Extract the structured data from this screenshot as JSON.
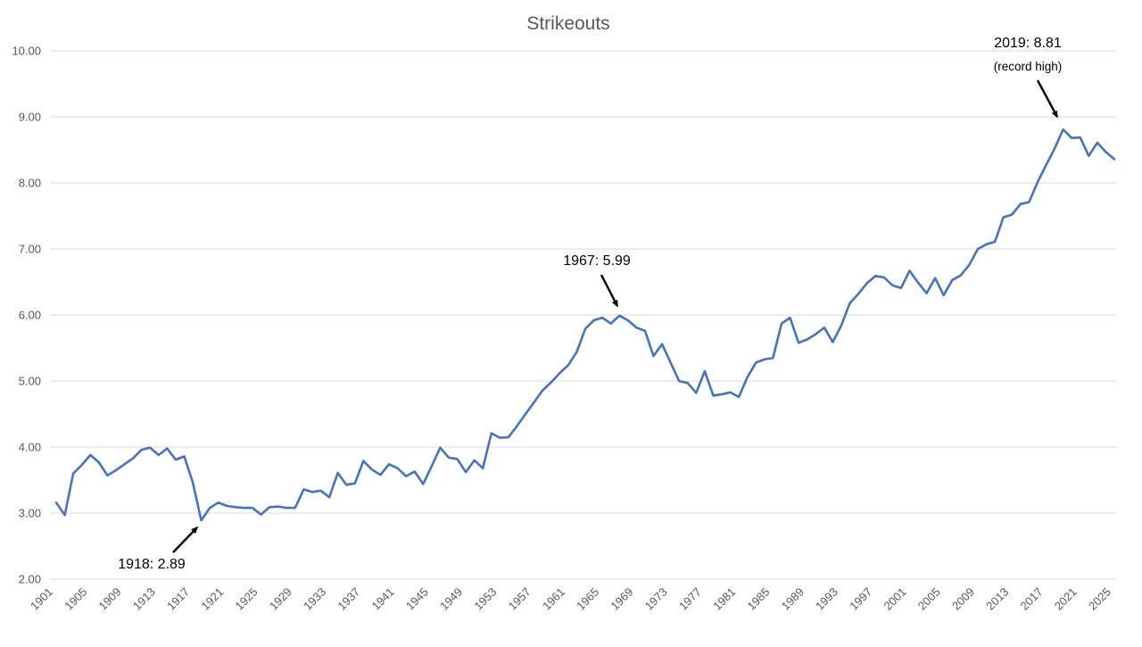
{
  "chart_data": {
    "type": "line",
    "title": "Strikeouts",
    "start_year": 1901,
    "end_year": 2025,
    "values": [
      3.16,
      2.97,
      3.6,
      3.73,
      3.88,
      3.77,
      3.57,
      3.65,
      3.74,
      3.83,
      3.96,
      3.99,
      3.88,
      3.98,
      3.81,
      3.86,
      3.47,
      2.89,
      3.08,
      3.16,
      3.11,
      3.09,
      3.08,
      3.08,
      2.98,
      3.09,
      3.1,
      3.08,
      3.08,
      3.36,
      3.32,
      3.34,
      3.24,
      3.61,
      3.43,
      3.45,
      3.79,
      3.66,
      3.58,
      3.74,
      3.68,
      3.56,
      3.63,
      3.44,
      3.71,
      3.99,
      3.84,
      3.82,
      3.62,
      3.8,
      3.68,
      4.21,
      4.14,
      4.15,
      4.32,
      4.5,
      4.68,
      4.86,
      4.98,
      5.12,
      5.24,
      5.44,
      5.79,
      5.92,
      5.96,
      5.87,
      5.99,
      5.92,
      5.81,
      5.76,
      5.38,
      5.56,
      5.28,
      5.0,
      4.97,
      4.82,
      5.15,
      4.78,
      4.8,
      4.83,
      4.76,
      5.06,
      5.28,
      5.33,
      5.35,
      5.87,
      5.96,
      5.58,
      5.63,
      5.71,
      5.81,
      5.59,
      5.84,
      6.18,
      6.32,
      6.48,
      6.59,
      6.57,
      6.45,
      6.41,
      6.67,
      6.49,
      6.33,
      6.56,
      6.3,
      6.53,
      6.6,
      6.76,
      7.0,
      7.07,
      7.11,
      7.48,
      7.52,
      7.68,
      7.71,
      8.01,
      8.27,
      8.52,
      8.81,
      8.68,
      8.69,
      8.41,
      8.61,
      8.47,
      8.36
    ],
    "ylim": [
      2,
      10
    ],
    "y_tick_labels": [
      "2.00",
      "3.00",
      "4.00",
      "5.00",
      "6.00",
      "7.00",
      "8.00",
      "9.00",
      "10.00"
    ],
    "x_tick_labels": [
      "1901",
      "1905",
      "1909",
      "1913",
      "1917",
      "1921",
      "1925",
      "1929",
      "1933",
      "1937",
      "1941",
      "1945",
      "1949",
      "1953",
      "1957",
      "1961",
      "1965",
      "1969",
      "1973",
      "1977",
      "1981",
      "1985",
      "1989",
      "1993",
      "1997",
      "2001",
      "2005",
      "2009",
      "2013",
      "2017",
      "2021",
      "2025"
    ],
    "x_tick_step": 4,
    "grid": "horizontal",
    "legend_position": "none",
    "line_color": "#4472C4",
    "gridline_color": "#d9d9d9",
    "axis_text_color": "#595959",
    "annotations": [
      {
        "year": 1918,
        "value": 2.89,
        "text": "1918: 2.89"
      },
      {
        "year": 1967,
        "value": 5.99,
        "text": "1967: 5.99"
      },
      {
        "year": 2019,
        "value": 8.81,
        "text": "2019: 8.81",
        "note": "(record high)"
      }
    ]
  }
}
